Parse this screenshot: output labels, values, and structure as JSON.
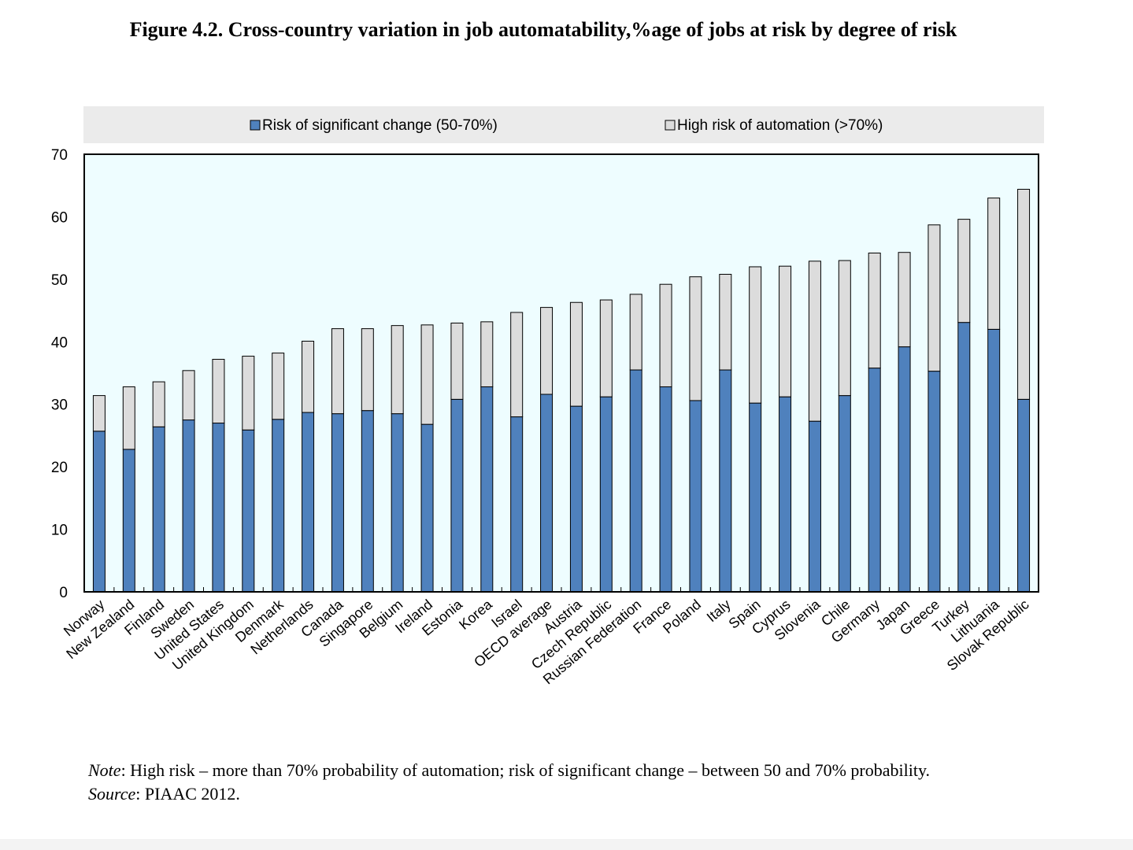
{
  "title": "Figure 4.2. Cross-country variation in job automatability,%age of jobs at risk by degree of risk",
  "chart_data": {
    "type": "bar",
    "stacked": true,
    "title": "Figure 4.2. Cross-country variation in job automatability,%age of jobs at risk by degree of risk",
    "xlabel": "",
    "ylabel": "",
    "ylim": [
      0,
      70
    ],
    "yticks": [
      0,
      10,
      20,
      30,
      40,
      50,
      60,
      70
    ],
    "grid": false,
    "legend_position": "top",
    "categories": [
      "Norway",
      "New Zealand",
      "Finland",
      "Sweden",
      "United States",
      "United Kingdom",
      "Denmark",
      "Netherlands",
      "Canada",
      "Singapore",
      "Belgium",
      "Ireland",
      "Estonia",
      "Korea",
      "Israel",
      "OECD average",
      "Austria",
      "Czech Republic",
      "Russian Federation",
      "France",
      "Poland",
      "Italy",
      "Spain",
      "Cyprus",
      "Slovenia",
      "Chile",
      "Germany",
      "Japan",
      "Greece",
      "Turkey",
      "Lithuania",
      "Slovak Republic"
    ],
    "series": [
      {
        "name": "Risk of significant change (50-70%)",
        "color": "#4f81bd",
        "values": [
          25.7,
          22.8,
          26.4,
          27.5,
          27.0,
          25.9,
          27.6,
          28.7,
          28.5,
          29.0,
          28.5,
          26.8,
          30.8,
          32.8,
          28.0,
          31.6,
          29.7,
          31.2,
          35.5,
          32.8,
          30.6,
          35.5,
          30.2,
          31.2,
          27.3,
          31.4,
          35.8,
          39.2,
          35.3,
          43.1,
          42.0,
          30.8
        ]
      },
      {
        "name": "High risk of automation (>70%)",
        "color": "#dcdcdc",
        "values": [
          5.7,
          10.0,
          7.2,
          7.9,
          10.2,
          11.8,
          10.6,
          11.4,
          13.6,
          13.1,
          14.1,
          15.9,
          12.2,
          10.4,
          16.7,
          13.9,
          16.6,
          15.5,
          12.1,
          16.4,
          19.8,
          15.3,
          21.8,
          20.9,
          25.6,
          21.6,
          18.4,
          15.1,
          23.4,
          16.5,
          21.0,
          33.6
        ]
      }
    ]
  },
  "note": {
    "note_label": "Note",
    "note_text": ": High risk – more than 70% probability of automation; risk of significant change – between 50 and 70% probability.",
    "source_label": "Source",
    "source_text": ": PIAAC 2012."
  }
}
